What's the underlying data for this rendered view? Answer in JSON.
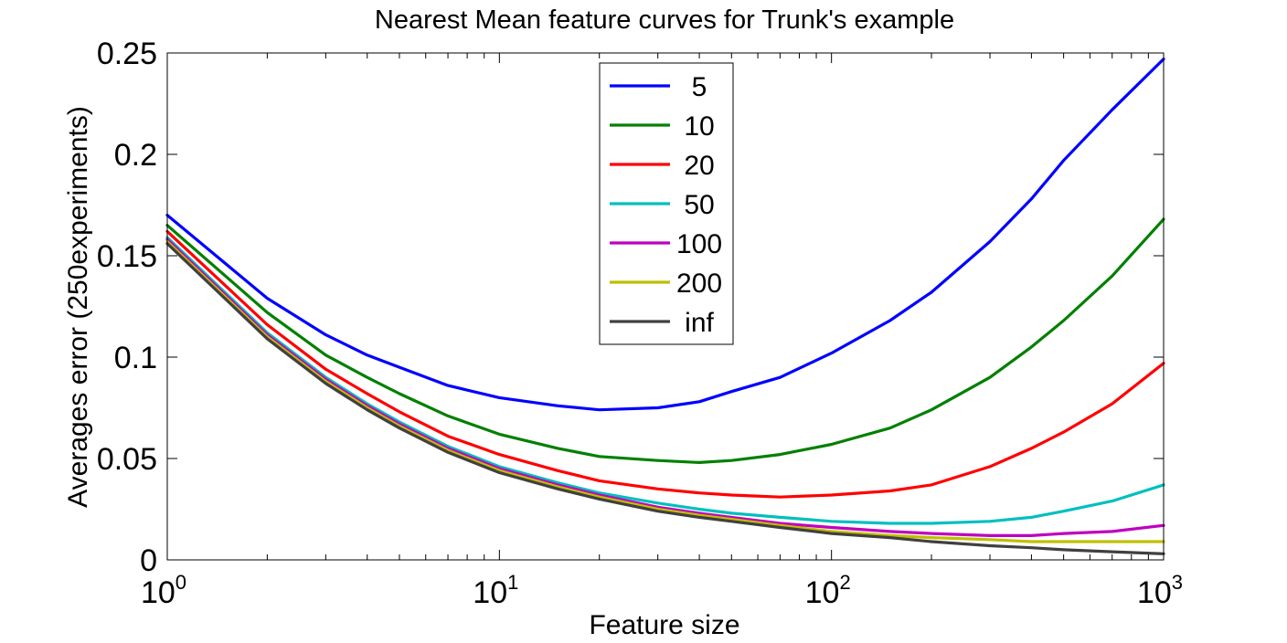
{
  "chart_data": {
    "type": "line",
    "title": "Nearest Mean feature curves for Trunk's example",
    "xlabel": "Feature size",
    "ylabel": "Averages error (250experiments)",
    "xscale": "log",
    "xlim": [
      1,
      1000
    ],
    "ylim": [
      0,
      0.25
    ],
    "grid": false,
    "legend_position": "top-center",
    "x_ticks": [
      {
        "base": "10",
        "exp": "0",
        "value": 1
      },
      {
        "base": "10",
        "exp": "1",
        "value": 10
      },
      {
        "base": "10",
        "exp": "2",
        "value": 100
      },
      {
        "base": "10",
        "exp": "3",
        "value": 1000
      }
    ],
    "y_ticks": [
      {
        "label": "0",
        "value": 0
      },
      {
        "label": "0.05",
        "value": 0.05
      },
      {
        "label": "0.1",
        "value": 0.1
      },
      {
        "label": "0.15",
        "value": 0.15
      },
      {
        "label": "0.2",
        "value": 0.2
      },
      {
        "label": "0.25",
        "value": 0.25
      }
    ],
    "x": [
      1,
      2,
      3,
      4,
      5,
      7,
      10,
      15,
      20,
      30,
      40,
      50,
      70,
      100,
      150,
      200,
      300,
      400,
      500,
      700,
      1000
    ],
    "series": [
      {
        "name": "5",
        "color": "#0000ff",
        "values": [
          0.17,
          0.129,
          0.111,
          0.101,
          0.095,
          0.086,
          0.08,
          0.076,
          0.074,
          0.075,
          0.078,
          0.083,
          0.09,
          0.102,
          0.118,
          0.132,
          0.157,
          0.178,
          0.197,
          0.222,
          0.247
        ]
      },
      {
        "name": "10",
        "color": "#008000",
        "values": [
          0.165,
          0.122,
          0.101,
          0.09,
          0.082,
          0.071,
          0.062,
          0.055,
          0.051,
          0.049,
          0.048,
          0.049,
          0.052,
          0.057,
          0.065,
          0.074,
          0.09,
          0.105,
          0.118,
          0.14,
          0.168
        ]
      },
      {
        "name": "20",
        "color": "#ff0000",
        "values": [
          0.162,
          0.116,
          0.094,
          0.082,
          0.073,
          0.061,
          0.052,
          0.044,
          0.039,
          0.035,
          0.033,
          0.032,
          0.031,
          0.032,
          0.034,
          0.037,
          0.046,
          0.055,
          0.063,
          0.077,
          0.097
        ]
      },
      {
        "name": "50",
        "color": "#00bfbf",
        "values": [
          0.159,
          0.112,
          0.09,
          0.077,
          0.068,
          0.056,
          0.046,
          0.038,
          0.033,
          0.028,
          0.025,
          0.023,
          0.021,
          0.019,
          0.018,
          0.018,
          0.019,
          0.021,
          0.024,
          0.029,
          0.037
        ]
      },
      {
        "name": "100",
        "color": "#bf00bf",
        "values": [
          0.158,
          0.111,
          0.089,
          0.076,
          0.067,
          0.055,
          0.045,
          0.037,
          0.032,
          0.026,
          0.023,
          0.021,
          0.018,
          0.016,
          0.014,
          0.013,
          0.012,
          0.012,
          0.013,
          0.014,
          0.017
        ]
      },
      {
        "name": "200",
        "color": "#bfbf00",
        "values": [
          0.157,
          0.11,
          0.088,
          0.075,
          0.066,
          0.054,
          0.044,
          0.036,
          0.031,
          0.025,
          0.022,
          0.02,
          0.017,
          0.014,
          0.012,
          0.011,
          0.01,
          0.009,
          0.009,
          0.009,
          0.009
        ]
      },
      {
        "name": "inf",
        "color": "#404040",
        "values": [
          0.156,
          0.109,
          0.087,
          0.074,
          0.065,
          0.053,
          0.043,
          0.035,
          0.03,
          0.024,
          0.021,
          0.019,
          0.016,
          0.013,
          0.011,
          0.009,
          0.007,
          0.006,
          0.005,
          0.004,
          0.003
        ]
      }
    ]
  }
}
